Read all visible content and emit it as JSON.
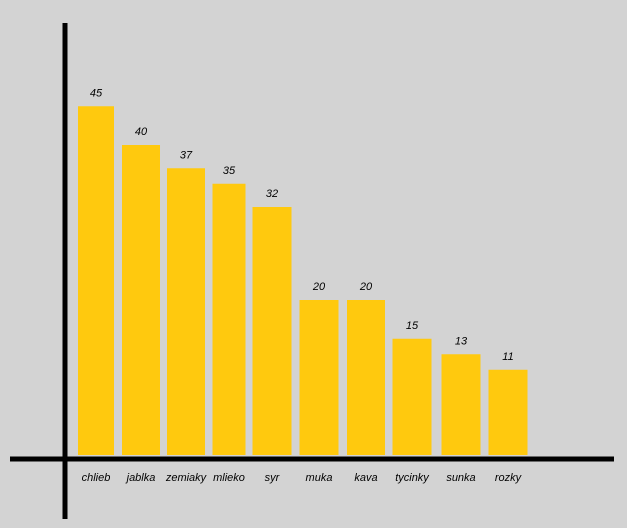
{
  "chart_data": {
    "type": "bar",
    "categories": [
      "chlieb",
      "jablka",
      "zemiaky",
      "mlieko",
      "syr",
      "muka",
      "kava",
      "tycinky",
      "sunka",
      "rozky"
    ],
    "values": [
      45,
      40,
      37,
      35,
      32,
      20,
      20,
      15,
      13,
      11
    ],
    "title": "",
    "xlabel": "",
    "ylabel": "",
    "ylim": [
      0,
      45
    ],
    "grid": false,
    "legend": "none",
    "bar_color": "#ffc90e",
    "axis_color": "#000000",
    "background_color": "#d3d3d3"
  }
}
